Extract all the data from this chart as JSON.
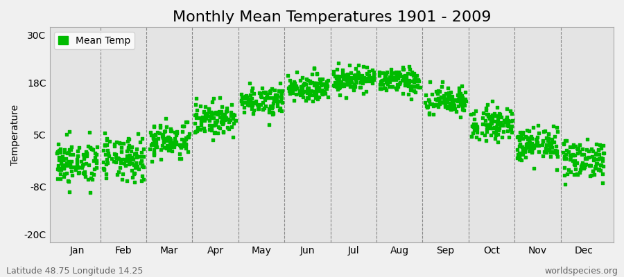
{
  "title": "Monthly Mean Temperatures 1901 - 2009",
  "ylabel": "Temperature",
  "marker_color": "#00bb00",
  "marker": "s",
  "marker_size": 3,
  "background_color": "#f0f0f0",
  "plot_bg_color": "#e4e4e4",
  "yticks": [
    -20,
    -8,
    5,
    18,
    30
  ],
  "ytick_labels": [
    "-20C",
    "-8C",
    "5C",
    "18C",
    "30C"
  ],
  "ylim": [
    -22,
    32
  ],
  "xlim": [
    -0.6,
    11.65
  ],
  "month_labels": [
    "Jan",
    "Feb",
    "Mar",
    "Apr",
    "May",
    "Jun",
    "Jul",
    "Aug",
    "Sep",
    "Oct",
    "Nov",
    "Dec"
  ],
  "month_positions": [
    0,
    1,
    2,
    3,
    4,
    5,
    6,
    7,
    8,
    9,
    10,
    11
  ],
  "vline_positions": [
    0.5,
    1.5,
    2.5,
    3.5,
    4.5,
    5.5,
    6.5,
    7.5,
    8.5,
    9.5,
    10.5
  ],
  "legend_label": "Mean Temp",
  "footer_left": "Latitude 48.75 Longitude 14.25",
  "footer_right": "worldspecies.org",
  "title_fontsize": 16,
  "axis_fontsize": 10,
  "footer_fontsize": 9,
  "monthly_means": [
    -2.0,
    -1.2,
    3.8,
    9.0,
    13.8,
    17.0,
    19.0,
    18.5,
    13.5,
    8.0,
    2.5,
    -1.0
  ],
  "monthly_stds": [
    2.8,
    2.8,
    2.2,
    2.0,
    1.8,
    1.6,
    1.6,
    1.6,
    1.8,
    2.0,
    2.2,
    2.5
  ],
  "years": 109,
  "seed": 42
}
